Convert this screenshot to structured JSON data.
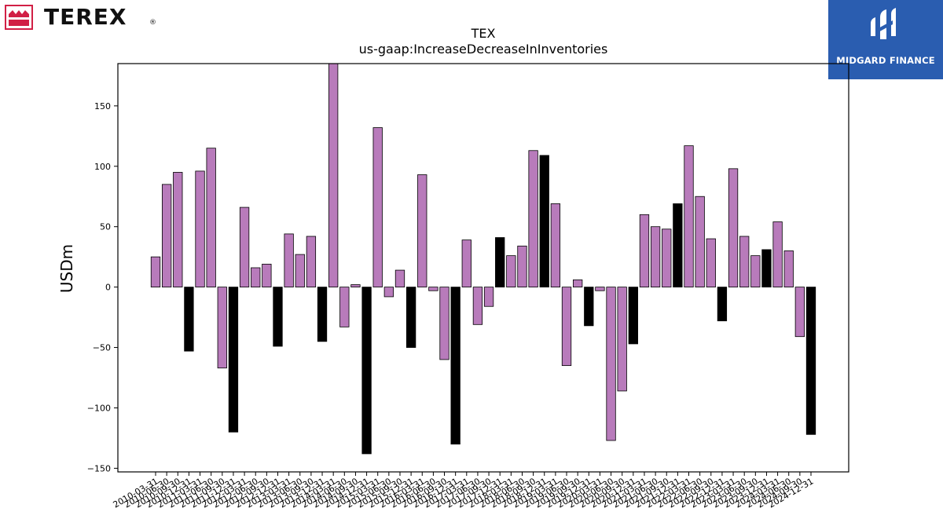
{
  "header": {
    "logo_text": "TEREX",
    "logo_reg": "®",
    "brand_name": "MIDGARD FINANCE"
  },
  "colors": {
    "bar_default": "#b87bbb",
    "bar_highlight": "#000000",
    "bar_edge": "#000000",
    "brand_bg": "#2a5db0",
    "logo_red": "#d11f45"
  },
  "chart_data": {
    "type": "bar",
    "title": "TEX",
    "subtitle": "us-gaap:IncreaseDecreaseInInventories",
    "ylabel": "USDm",
    "xlabel": "",
    "ylim": [
      -153,
      185
    ],
    "yticks": [
      -150,
      -100,
      -50,
      0,
      50,
      100,
      150
    ],
    "grid": false,
    "categories": [
      "2010-03-31",
      "2010-06-30",
      "2010-09-30",
      "2010-12-31",
      "2011-03-31",
      "2011-06-30",
      "2011-09-30",
      "2011-12-31",
      "2012-03-31",
      "2012-06-30",
      "2012-09-30",
      "2012-12-31",
      "2013-03-31",
      "2013-06-30",
      "2013-09-30",
      "2013-12-31",
      "2014-03-31",
      "2014-06-30",
      "2014-09-30",
      "2014-12-31",
      "2015-03-31",
      "2015-06-30",
      "2015-09-30",
      "2015-12-31",
      "2016-03-31",
      "2016-06-30",
      "2016-09-30",
      "2016-12-31",
      "2017-03-31",
      "2017-06-30",
      "2017-09-30",
      "2017-12-31",
      "2018-03-31",
      "2018-06-30",
      "2018-09-30",
      "2018-12-31",
      "2019-03-31",
      "2019-06-30",
      "2019-09-30",
      "2019-12-31",
      "2020-03-31",
      "2020-06-30",
      "2020-09-30",
      "2020-12-31",
      "2021-03-31",
      "2021-06-30",
      "2021-09-30",
      "2021-12-31",
      "2022-03-31",
      "2022-06-30",
      "2022-09-30",
      "2022-12-31",
      "2023-03-31",
      "2023-06-30",
      "2023-09-30",
      "2023-12-31",
      "2024-03-31",
      "2024-06-30",
      "2024-09-30",
      "2024-12-31"
    ],
    "values": [
      25,
      85,
      95,
      -53,
      96,
      115,
      -67,
      -120,
      66,
      16,
      19,
      -49,
      44,
      27,
      42,
      -45,
      188,
      -33,
      2,
      -138,
      132,
      -8,
      14,
      -50,
      93,
      -3,
      -60,
      -130,
      39,
      -31,
      -16,
      41,
      26,
      34,
      113,
      109,
      69,
      -65,
      6,
      -32,
      -3,
      -127,
      -86,
      -47,
      60,
      50,
      48,
      69,
      117,
      75,
      40,
      -28,
      98,
      42,
      26,
      31,
      54,
      30,
      -41,
      -122
    ],
    "highlight": [
      false,
      false,
      false,
      true,
      false,
      false,
      false,
      true,
      false,
      false,
      false,
      true,
      false,
      false,
      false,
      true,
      false,
      false,
      false,
      true,
      false,
      false,
      false,
      true,
      false,
      false,
      false,
      true,
      false,
      false,
      false,
      true,
      false,
      false,
      false,
      true,
      false,
      false,
      false,
      true,
      false,
      false,
      false,
      true,
      false,
      false,
      false,
      true,
      false,
      false,
      false,
      true,
      false,
      false,
      false,
      true,
      false,
      false,
      false,
      true
    ]
  }
}
